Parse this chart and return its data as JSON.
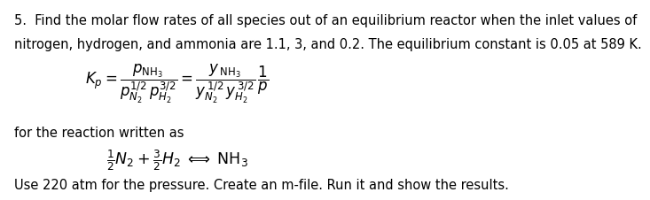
{
  "bg_color": "#ffffff",
  "text_color": "#000000",
  "line1": "5.  Find the molar flow rates of all species out of an equilibrium reactor when the inlet values of",
  "line2": "nitrogen, hydrogen, and ammonia are 1.1, 3, and 0.2. The equilibrium constant is 0.05 at 589 K.",
  "label_for_reaction": "for the reaction written as",
  "bottom_text": "Use 220 atm for the pressure. Create an m-file. Run it and show the results.",
  "font_size": 10.5,
  "math_font_size": 11
}
